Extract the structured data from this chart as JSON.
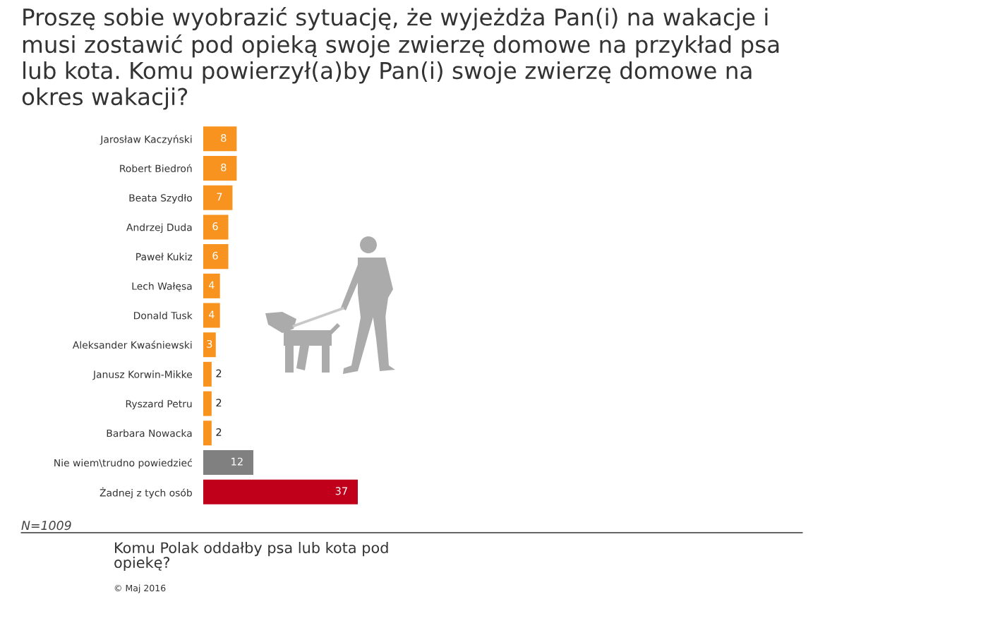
{
  "chart_data": {
    "type": "bar",
    "orientation": "horizontal",
    "title": "Proszę sobie wyobrazić sytuację, że wyjeżdża Pan(i) na wakacje i musi zostawić pod opieką swoje zwierzę domowe na przykład psa lub kota. Komu powierzył(a)by Pan(i) swoje zwierzę domowe na okres wakacji?",
    "categories": [
      "Jarosław Kaczyński",
      "Robert Biedroń",
      "Beata Szydło",
      "Andrzej Duda",
      "Paweł Kukiz",
      "Lech Wałęsa",
      "Donald Tusk",
      "Aleksander Kwaśniewski",
      "Janusz Korwin-Mikke",
      "Ryszard Petru",
      "Barbara Nowacka",
      "Nie wiem\\trudno powiedzieć",
      "Żadnej z tych osób"
    ],
    "values": [
      8,
      8,
      7,
      6,
      6,
      4,
      4,
      3,
      2,
      2,
      2,
      12,
      37
    ],
    "colors": [
      "#f7931e",
      "#f7931e",
      "#f7931e",
      "#f7931e",
      "#f7931e",
      "#f7931e",
      "#f7931e",
      "#f7931e",
      "#f7931e",
      "#f7931e",
      "#f7931e",
      "#808080",
      "#c0001a"
    ],
    "data_labels": true,
    "annotations": [
      "N=1009",
      "Komu Polak oddałby psa lub kota pod opiekę?",
      "© Maj 2016"
    ]
  }
}
